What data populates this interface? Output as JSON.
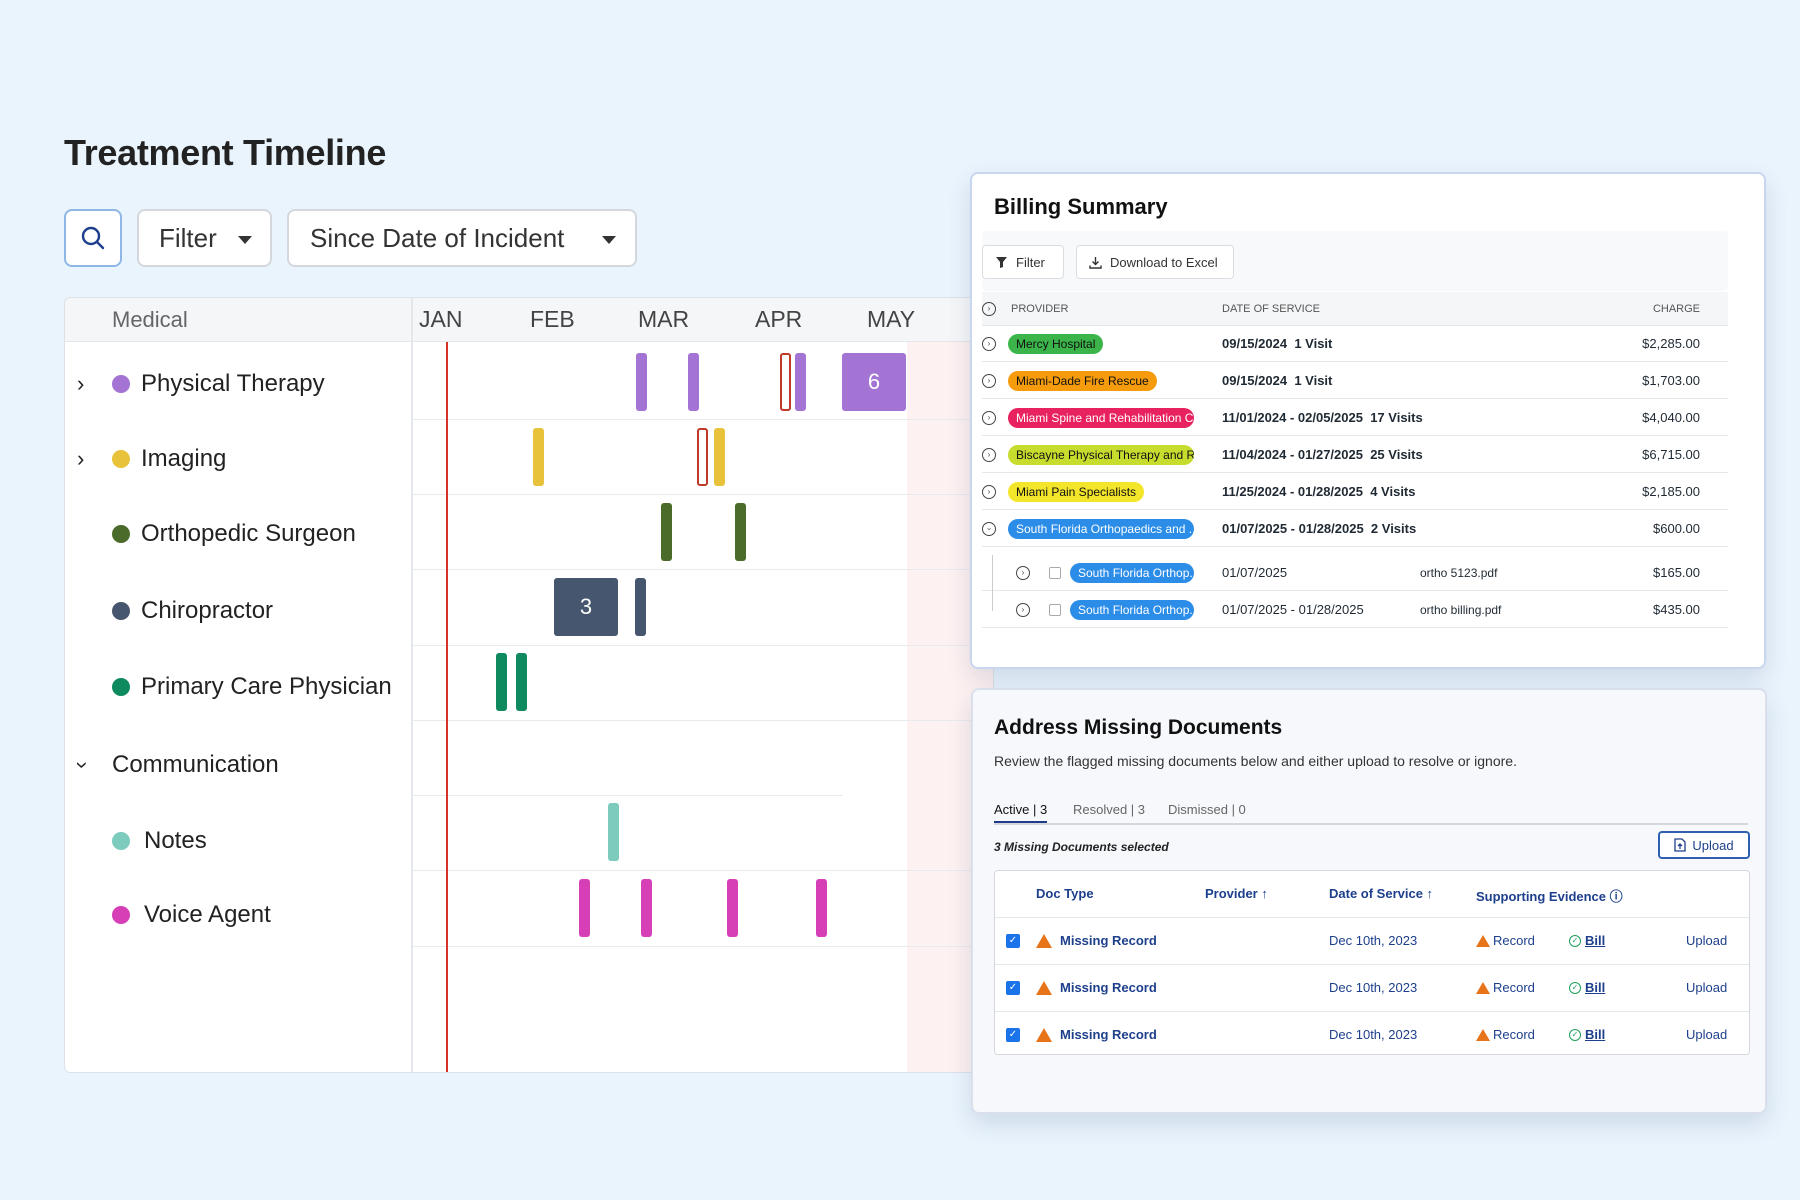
{
  "page": {
    "title": "Treatment Timeline"
  },
  "toolbar": {
    "filter_label": "Filter",
    "date_range_label": "Since Date of Incident"
  },
  "timeline": {
    "section_label": "Medical",
    "months": [
      "JAN",
      "FEB",
      "MAR",
      "APR",
      "MAY"
    ],
    "categories": [
      {
        "label": "Physical Therapy",
        "color": "#a374d4",
        "expandable": true
      },
      {
        "label": "Imaging",
        "color": "#e8c23a",
        "expandable": true
      },
      {
        "label": "Orthopedic Surgeon",
        "color": "#4a6b2a",
        "expandable": false
      },
      {
        "label": "Chiropractor",
        "color": "#46566e",
        "expandable": false
      },
      {
        "label": "Primary Care Physician",
        "color": "#0f8a5f",
        "expandable": false
      }
    ],
    "communication_label": "Communication",
    "communication": [
      {
        "label": "Notes",
        "color": "#7ccbbd"
      },
      {
        "label": "Voice Agent",
        "color": "#d63fb6"
      }
    ],
    "clusters": {
      "physical_therapy": "6",
      "chiropractor": "3"
    }
  },
  "billing": {
    "title": "Billing Summary",
    "filter_label": "Filter",
    "download_label": "Download to Excel",
    "columns": {
      "provider": "PROVIDER",
      "date": "DATE OF SERVICE",
      "charge": "CHARGE"
    },
    "rows": [
      {
        "provider": "Mercy Hospital",
        "color": "#3bb54a",
        "text": "#111",
        "dates": "09/15/2024",
        "visits": "1 Visit",
        "charge": "$2,285.00"
      },
      {
        "provider": "Miami-Dade Fire Rescue",
        "color": "#f59b0c",
        "text": "#111",
        "dates": "09/15/2024",
        "visits": "1 Visit",
        "charge": "$1,703.00"
      },
      {
        "provider": "Miami Spine and Rehabilitation C...",
        "color": "#e8215f",
        "text": "#fff",
        "dates": "11/01/2024 - 02/05/2025",
        "visits": "17 Visits",
        "charge": "$4,040.00"
      },
      {
        "provider": "Biscayne Physical Therapy and R...",
        "color": "#c8dc2e",
        "text": "#111",
        "dates": "11/04/2024 - 01/27/2025",
        "visits": "25 Visits",
        "charge": "$6,715.00"
      },
      {
        "provider": "Miami Pain Specialists",
        "color": "#f3e52a",
        "text": "#111",
        "dates": "11/25/2024 - 01/28/2025",
        "visits": "4 Visits",
        "charge": "$2,185.00"
      },
      {
        "provider": "South Florida Orthopaedics and ...",
        "color": "#2b8de8",
        "text": "#fff",
        "dates": "01/07/2025 - 01/28/2025",
        "visits": "2 Visits",
        "charge": "$600.00"
      }
    ],
    "subrows": [
      {
        "provider": "South Florida Orthop...",
        "dates": "01/07/2025",
        "file": "ortho 5123.pdf",
        "charge": "$165.00"
      },
      {
        "provider": "South Florida Orthop...",
        "dates": "01/07/2025 - 01/28/2025",
        "file": "ortho billing.pdf",
        "charge": "$435.00"
      }
    ]
  },
  "missing_docs": {
    "title": "Address Missing Documents",
    "subtitle": "Review the flagged missing documents below and either upload to resolve or ignore.",
    "tabs": {
      "active": "Active | 3",
      "resolved": "Resolved | 3",
      "dismissed": "Dismissed | 0"
    },
    "selected_note": "3 Missing Documents selected",
    "upload_label": "Upload",
    "columns": {
      "doc_type": "Doc Type",
      "provider": "Provider ↑",
      "date": "Date of Service ↑",
      "evidence": "Supporting Evidence ⓘ"
    },
    "rows": [
      {
        "doc_type": "Missing Record",
        "date": "Dec 10th, 2023",
        "record": "Record",
        "bill": "Bill",
        "action": "Upload"
      },
      {
        "doc_type": "Missing Record",
        "date": "Dec 10th, 2023",
        "record": "Record",
        "bill": "Bill",
        "action": "Upload"
      },
      {
        "doc_type": "Missing Record",
        "date": "Dec 10th, 2023",
        "record": "Record",
        "bill": "Bill",
        "action": "Upload"
      }
    ]
  }
}
